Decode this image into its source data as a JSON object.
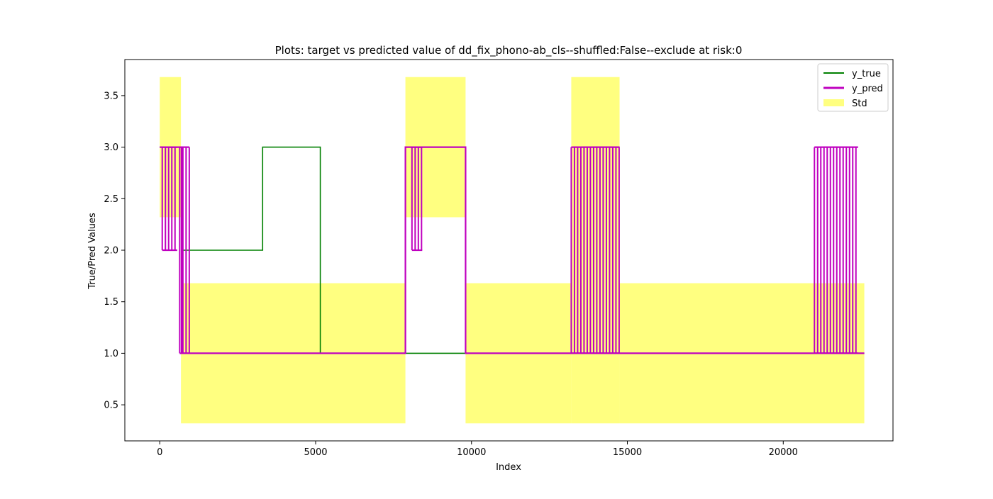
{
  "chart_data": {
    "type": "line",
    "title": "Plots: target vs predicted value of dd_fix_phono-ab_cls--shuffled:False--exclude at risk:0",
    "xlabel": "Index",
    "ylabel": "True/Pred Values",
    "xlim": [
      -1120,
      23520
    ],
    "ylim": [
      0.15,
      3.85
    ],
    "xticks": [
      0,
      5000,
      10000,
      15000,
      20000
    ],
    "xtick_labels": [
      "0",
      "5000",
      "10000",
      "15000",
      "20000"
    ],
    "yticks": [
      0.5,
      1.0,
      1.5,
      2.0,
      2.5,
      3.0,
      3.5
    ],
    "ytick_labels": [
      "0.5",
      "1.0",
      "1.5",
      "2.0",
      "2.5",
      "3.0",
      "3.5"
    ],
    "grid": false,
    "legend_position": "top-right",
    "legend": [
      "y_true",
      "y_pred",
      "Std"
    ],
    "colors": {
      "y_true": "#008000",
      "y_pred": "#bf00bf",
      "std": "#ffff80"
    },
    "series": [
      {
        "name": "y_true",
        "x": [
          0,
          700,
          700,
          3300,
          3300,
          5150,
          5150,
          22600
        ],
        "y": [
          3.0,
          3.0,
          2.0,
          2.0,
          3.0,
          3.0,
          1.0,
          1.0
        ]
      },
      {
        "name": "y_pred",
        "x": [
          0,
          700,
          700,
          7880,
          7880,
          9810,
          9810,
          22600
        ],
        "y": [
          3.0,
          3.0,
          1.0,
          1.0,
          3.0,
          3.0,
          1.0,
          1.0
        ],
        "oscillation_regions": [
          {
            "x_start": 80,
            "x_end": 560,
            "low": 2.0,
            "high": 3.0
          },
          {
            "x_start": 640,
            "x_end": 950,
            "low": 1.0,
            "high": 3.0
          },
          {
            "x_start": 8090,
            "x_end": 8420,
            "low": 2.0,
            "high": 3.0
          },
          {
            "x_start": 13200,
            "x_end": 14750,
            "low": 1.0,
            "high": 3.0
          },
          {
            "x_start": 21000,
            "x_end": 22400,
            "low": 1.0,
            "high": 3.0
          }
        ]
      }
    ],
    "std_bands": [
      {
        "x_start": 0,
        "x_end": 680,
        "low": 2.32,
        "high": 3.68
      },
      {
        "x_start": 680,
        "x_end": 7880,
        "low": 0.32,
        "high": 1.68
      },
      {
        "x_start": 7880,
        "x_end": 9810,
        "low": 2.32,
        "high": 3.68
      },
      {
        "x_start": 9810,
        "x_end": 13200,
        "low": 0.32,
        "high": 1.68
      },
      {
        "x_start": 13200,
        "x_end": 14750,
        "low": 0.32,
        "high": 3.68
      },
      {
        "x_start": 14750,
        "x_end": 22600,
        "low": 0.32,
        "high": 1.68
      }
    ]
  }
}
